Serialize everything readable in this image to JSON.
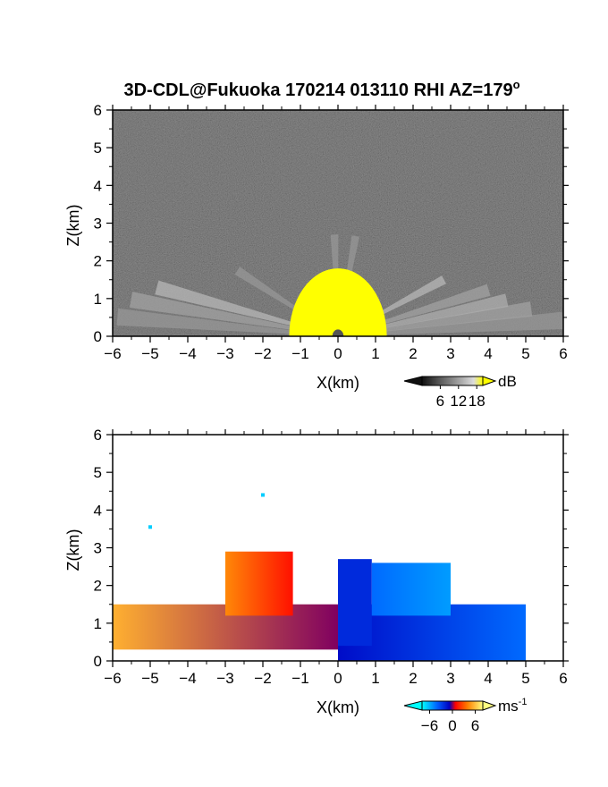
{
  "chart_data": [
    {
      "type": "heatmap",
      "title": "3D-CDL@Fukuoka 170214 013110 RHI AZ=179",
      "title_sup": "o",
      "xlabel": "X(km)",
      "ylabel": "Z(km)",
      "xlim": [
        -6,
        6
      ],
      "ylim": [
        0,
        6
      ],
      "x_ticks": [
        "-6",
        "-5",
        "-4",
        "-3",
        "-2",
        "-1",
        "0",
        "1",
        "2",
        "3",
        "4",
        "5",
        "6"
      ],
      "y_ticks": [
        "0",
        "1",
        "2",
        "3",
        "4",
        "5",
        "6"
      ],
      "colorbar": {
        "unit": "dB",
        "unit_sup": "",
        "ticks": [
          "6",
          "12",
          "18"
        ],
        "range": [
          0,
          20
        ],
        "colors": [
          "#101010",
          "#5a5a5a",
          "#a0a0a0",
          "#dcdcdc",
          "#ffff00"
        ]
      },
      "background": "#2a2a2a",
      "scan_origin_x_km": 0,
      "rays": [
        {
          "angle_deg": 4,
          "range_km": 6.0,
          "level": 0.55
        },
        {
          "angle_deg": 8,
          "range_km": 5.2,
          "level": 0.6
        },
        {
          "angle_deg": 12,
          "range_km": 4.6,
          "level": 0.65
        },
        {
          "angle_deg": 17,
          "range_km": 4.2,
          "level": 0.6
        },
        {
          "angle_deg": 28,
          "range_km": 3.2,
          "level": 0.7
        },
        {
          "angle_deg": 80,
          "range_km": 2.7,
          "level": 0.55
        },
        {
          "angle_deg": 92,
          "range_km": 2.7,
          "level": 0.55
        },
        {
          "angle_deg": 147,
          "range_km": 3.2,
          "level": 0.55
        },
        {
          "angle_deg": 165,
          "range_km": 5.0,
          "level": 0.7
        },
        {
          "angle_deg": 170,
          "range_km": 5.6,
          "level": 0.6
        },
        {
          "angle_deg": 175,
          "range_km": 5.9,
          "level": 0.55
        }
      ],
      "saturated_zone": {
        "halfwidth_km": 1.3,
        "height_km": 1.8,
        "level": 1.0
      }
    },
    {
      "type": "heatmap",
      "xlabel": "X(km)",
      "ylabel": "Z(km)",
      "xlim": [
        -6,
        6
      ],
      "ylim": [
        0,
        6
      ],
      "x_ticks": [
        "-6",
        "-5",
        "-4",
        "-3",
        "-2",
        "-1",
        "0",
        "1",
        "2",
        "3",
        "4",
        "5",
        "6"
      ],
      "y_ticks": [
        "0",
        "1",
        "2",
        "3",
        "4",
        "5",
        "6"
      ],
      "colorbar": {
        "unit": "ms",
        "unit_sup": "-1",
        "ticks": [
          "-6",
          "0",
          "6"
        ],
        "range": [
          -8,
          8
        ],
        "colors": [
          "#00ffff",
          "#0060ff",
          "#0000c0",
          "#ff0000",
          "#ff8000",
          "#ffff80"
        ]
      },
      "background": "#ffffff",
      "scan_origin_x_km": 0,
      "regions": [
        {
          "name": "west-layer",
          "x": [
            -6,
            0
          ],
          "z": [
            0.3,
            1.5
          ],
          "velocity_ms": [
            6,
            0
          ]
        },
        {
          "name": "west-beam",
          "x": [
            -3,
            -1.2
          ],
          "z": [
            1.2,
            2.9
          ],
          "velocity_ms": [
            5,
            2
          ]
        },
        {
          "name": "east-layer",
          "x": [
            0,
            5
          ],
          "z": [
            0,
            1.5
          ],
          "velocity_ms": [
            -2,
            -5
          ]
        },
        {
          "name": "east-column",
          "x": [
            0,
            0.9
          ],
          "z": [
            0.4,
            2.7
          ],
          "velocity_ms": [
            -3,
            -3
          ]
        },
        {
          "name": "east-beam",
          "x": [
            0.9,
            3.0
          ],
          "z": [
            1.2,
            2.6
          ],
          "velocity_ms": [
            -5,
            -6
          ]
        }
      ],
      "speckles": [
        {
          "x_km": -5.0,
          "z_km": 3.55,
          "velocity_ms": -7
        },
        {
          "x_km": -2.0,
          "z_km": 4.4,
          "velocity_ms": -7
        }
      ]
    }
  ]
}
